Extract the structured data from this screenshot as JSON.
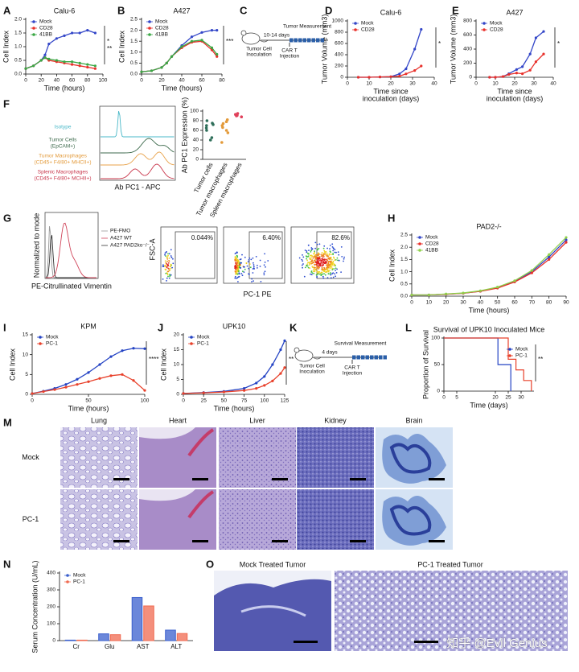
{
  "panel_labels": [
    "A",
    "B",
    "C",
    "D",
    "E",
    "F",
    "G",
    "H",
    "I",
    "J",
    "K",
    "L",
    "M",
    "N",
    "O"
  ],
  "chart_data": [
    {
      "type": "line",
      "title": "Calu-6",
      "x_label": "Time (hours)",
      "y_label": "Cell Index",
      "x": [
        0,
        10,
        20,
        25,
        30,
        40,
        50,
        60,
        70,
        80,
        90
      ],
      "xlim": [
        0,
        100
      ],
      "xticks": [
        0,
        20,
        40,
        60,
        80,
        100
      ],
      "ylim": [
        0,
        2
      ],
      "yticks": [
        {
          "value": 0,
          "label": "0.0"
        },
        0.5,
        {
          "value": 1,
          "label": "1.0"
        },
        1.5,
        {
          "value": 2,
          "label": "2.0"
        }
      ],
      "legend": "upper left",
      "annotations": [
        "*",
        "**"
      ],
      "series": [
        {
          "name": "Mock",
          "color": "#3346c8",
          "values": [
            0.2,
            0.3,
            0.5,
            0.7,
            1.1,
            1.3,
            1.4,
            1.5,
            1.5,
            1.6,
            1.5
          ]
        },
        {
          "name": "CD28",
          "color": "#e8302a",
          "values": [
            0.2,
            0.3,
            0.5,
            0.6,
            0.5,
            0.45,
            0.4,
            0.35,
            0.3,
            0.25,
            0.2
          ]
        },
        {
          "name": "41BB",
          "color": "#3aa845",
          "values": [
            0.2,
            0.3,
            0.5,
            0.6,
            0.55,
            0.5,
            0.45,
            0.45,
            0.4,
            0.35,
            0.3
          ]
        }
      ]
    },
    {
      "type": "line",
      "title": "A427",
      "x_label": "Time (hours)",
      "y_label": "Cell Index",
      "x": [
        0,
        10,
        20,
        25,
        30,
        40,
        50,
        60,
        70,
        75
      ],
      "xlim": [
        0,
        80
      ],
      "xticks": [
        0,
        20,
        40,
        60,
        80
      ],
      "ylim": [
        0,
        2.5
      ],
      "yticks": [
        {
          "value": 0,
          "label": "0.0"
        },
        0.5,
        {
          "value": 1,
          "label": "1.0"
        },
        1.5,
        {
          "value": 2,
          "label": "2.0"
        },
        2.5
      ],
      "legend": "upper left",
      "annotations": [
        "***"
      ],
      "series": [
        {
          "name": "Mock",
          "color": "#3346c8",
          "values": [
            0.1,
            0.15,
            0.3,
            0.5,
            0.8,
            1.3,
            1.7,
            1.9,
            2.0,
            2.0
          ]
        },
        {
          "name": "CD28",
          "color": "#e8302a",
          "values": [
            0.1,
            0.15,
            0.3,
            0.5,
            0.8,
            1.2,
            1.45,
            1.5,
            1.1,
            0.8
          ]
        },
        {
          "name": "41BB",
          "color": "#3aa845",
          "values": [
            0.1,
            0.15,
            0.3,
            0.5,
            0.8,
            1.25,
            1.5,
            1.55,
            1.2,
            0.9
          ]
        }
      ]
    },
    {
      "type": "line",
      "title": "Calu-6",
      "x_label": [
        "Time since",
        "inoculation (days)"
      ],
      "y_label": "Tumor Volume (mm3)",
      "x": [
        5,
        10,
        15,
        20,
        24,
        27,
        31,
        34
      ],
      "xlim": [
        0,
        40
      ],
      "xticks": [
        0,
        10,
        20,
        30,
        40
      ],
      "ylim": [
        0,
        1000
      ],
      "yticks": [
        0,
        200,
        400,
        600,
        800,
        1000
      ],
      "legend": "upper left",
      "annotations": [
        "*"
      ],
      "series": [
        {
          "name": "Mock",
          "color": "#3346c8",
          "values": [
            0,
            0,
            5,
            10,
            60,
            150,
            500,
            850
          ]
        },
        {
          "name": "CD28",
          "color": "#e8302a",
          "values": [
            0,
            0,
            5,
            10,
            20,
            60,
            120,
            200
          ]
        }
      ]
    },
    {
      "type": "line",
      "title": "A427",
      "x_label": [
        "Time since",
        "inoculation (days)"
      ],
      "y_label": "Tumor Volume (mm3)",
      "x": [
        7,
        10,
        14,
        17,
        21,
        24,
        28,
        31,
        35
      ],
      "xlim": [
        0,
        40
      ],
      "xticks": [
        0,
        10,
        20,
        30,
        40
      ],
      "ylim": [
        0,
        800
      ],
      "yticks": [
        0,
        200,
        400,
        600,
        800
      ],
      "legend": "upper left",
      "annotations": [
        "*"
      ],
      "series": [
        {
          "name": "Mock",
          "color": "#3346c8",
          "values": [
            0,
            0,
            10,
            50,
            110,
            150,
            330,
            560,
            650
          ]
        },
        {
          "name": "CD28",
          "color": "#e8302a",
          "values": [
            0,
            0,
            10,
            40,
            60,
            50,
            100,
            220,
            330
          ]
        }
      ]
    },
    {
      "type": "strip",
      "y_label": "Ab PC1 Expression (%)",
      "categories": [
        "Tumor cells",
        "Tumor macrophages",
        "Spleen macrophages"
      ],
      "colors": [
        "#2f6f5a",
        "#e39a3a",
        "#e0405a"
      ],
      "values": [
        [
          80,
          75,
          72,
          70,
          65,
          60,
          45,
          40
        ],
        [
          82,
          78,
          74,
          70,
          66,
          60,
          55,
          35
        ],
        [
          95,
          93,
          91,
          90,
          88
        ]
      ],
      "ylim": [
        0,
        100
      ],
      "yticks": [
        0,
        20,
        40,
        60,
        80,
        100
      ]
    },
    {
      "type": "line",
      "title": "PAD2-/-",
      "x_label": "Time (hours)",
      "y_label": "Cell Index",
      "x": [
        0,
        10,
        20,
        30,
        40,
        50,
        60,
        70,
        80,
        90
      ],
      "xlim": [
        0,
        90
      ],
      "xticks": [
        0,
        10,
        20,
        30,
        40,
        50,
        60,
        70,
        80,
        90
      ],
      "ylim": [
        0,
        2.5
      ],
      "yticks": [
        {
          "value": 0,
          "label": "0.0"
        },
        0.5,
        {
          "value": 1,
          "label": "1.0"
        },
        1.5,
        {
          "value": 2,
          "label": "2.0"
        },
        2.5
      ],
      "legend": "upper left",
      "series": [
        {
          "name": "Mock",
          "color": "#3346c8",
          "values": [
            0.05,
            0.05,
            0.08,
            0.12,
            0.2,
            0.35,
            0.6,
            1.0,
            1.6,
            2.3
          ]
        },
        {
          "name": "CD28",
          "color": "#e8302a",
          "values": [
            0.05,
            0.05,
            0.08,
            0.12,
            0.2,
            0.33,
            0.58,
            0.95,
            1.5,
            2.2
          ]
        },
        {
          "name": "41BB",
          "color": "#8fd04a",
          "values": [
            0.05,
            0.05,
            0.09,
            0.13,
            0.22,
            0.37,
            0.63,
            1.05,
            1.7,
            2.4
          ]
        }
      ]
    },
    {
      "type": "line",
      "title": "KPM",
      "x_label": "Time (hours)",
      "y_label": "Cell Index",
      "x": [
        0,
        10,
        20,
        30,
        40,
        50,
        60,
        70,
        80,
        90,
        100
      ],
      "xlim": [
        0,
        100
      ],
      "xticks": [
        0,
        50,
        100
      ],
      "ylim": [
        0,
        15
      ],
      "yticks": [
        0,
        5,
        10,
        15
      ],
      "legend": "upper left",
      "annotations": [
        "****"
      ],
      "series": [
        {
          "name": "Mock",
          "color": "#2443c4",
          "values": [
            0.2,
            0.8,
            1.5,
            2.5,
            3.8,
            5.5,
            7.5,
            9.5,
            11,
            11.6,
            11.5
          ]
        },
        {
          "name": "PC-1",
          "color": "#e8402a",
          "values": [
            0.2,
            0.7,
            1.2,
            1.8,
            2.5,
            3.2,
            4,
            4.7,
            5,
            3.5,
            1
          ]
        }
      ]
    },
    {
      "type": "line",
      "title": "UPK10",
      "x_label": "Time (hours)",
      "y_label": "Cell Index",
      "x": [
        0,
        25,
        50,
        75,
        90,
        100,
        110,
        120,
        125
      ],
      "xlim": [
        0,
        125
      ],
      "xticks": [
        0,
        25,
        50,
        75,
        100,
        125
      ],
      "ylim": [
        0,
        20
      ],
      "yticks": [
        0,
        5,
        10,
        15,
        20
      ],
      "legend": "upper left",
      "annotations": [
        "**"
      ],
      "series": [
        {
          "name": "Mock",
          "color": "#2443c4",
          "values": [
            0.3,
            0.6,
            1.0,
            2.0,
            3.8,
            6,
            10,
            15,
            18
          ]
        },
        {
          "name": "PC-1",
          "color": "#e8402a",
          "values": [
            0.3,
            0.5,
            0.8,
            1.3,
            2,
            3,
            4.5,
            7,
            9
          ]
        }
      ]
    },
    {
      "type": "step",
      "title": "Survival of UPK10 Inoculated Mice",
      "x_label": "Time (days)",
      "y_label": "Proportion of Survival",
      "xlim": [
        0,
        35
      ],
      "xticks": [
        0,
        5,
        20,
        25,
        30
      ],
      "ylim": [
        0,
        100
      ],
      "yticks": [
        0,
        50,
        100
      ],
      "legend": "upper right",
      "annotations": [
        "**"
      ],
      "series": [
        {
          "name": "Mock",
          "color": "#2443c4",
          "x": [
            0,
            21,
            26
          ],
          "values": [
            100,
            50,
            0
          ]
        },
        {
          "name": "PC-1",
          "color": "#e8402a",
          "x": [
            0,
            25,
            28,
            31,
            34
          ],
          "values": [
            100,
            60,
            40,
            20,
            0
          ]
        }
      ]
    },
    {
      "type": "bar",
      "y_label": "Serum Concentration (U/mL)",
      "categories": [
        "Cr",
        "Glu",
        "AST",
        "ALT"
      ],
      "ylim": [
        0,
        400
      ],
      "yticks": [
        0,
        100,
        200,
        300,
        400
      ],
      "legend": "upper left",
      "series": [
        {
          "name": "Mock",
          "color": "#3a5fcd",
          "values": [
            3,
            40,
            255,
            62
          ]
        },
        {
          "name": "PC-1",
          "color": "#f06a50",
          "values": [
            3,
            35,
            205,
            42
          ]
        }
      ]
    }
  ],
  "diagram_C": {
    "top": "Tumor Measurement",
    "interval": "10-14 days",
    "start": [
      "Tumor Cell",
      "Inoculation"
    ],
    "injection": [
      "CAR T",
      "Injection"
    ]
  },
  "diagram_K": {
    "top": "Survival Measurement",
    "interval": "4 days",
    "start": [
      "Tumor Cell",
      "Inoculation"
    ],
    "injection": [
      "CAR T",
      "Injection"
    ]
  },
  "histogram_F": {
    "labels": [
      [
        "Isotype"
      ],
      [
        "Tumor Cells",
        "(EpCAM+)"
      ],
      [
        "Tumor Macrophages",
        "(CD45+ F4/80+ MHCII+)"
      ],
      [
        "Splenic Macrophages",
        "(CD45+ F4/80+ MCHII+)"
      ]
    ],
    "x_label": "Ab PC1 - APC"
  },
  "histogram_G": {
    "legend": [
      "PE-FMO",
      "A427 WT",
      "A427 PAD2ko⁻/⁻"
    ],
    "x_label": "PE-Citrullinated Vimentin",
    "y_label": "Normalized to mode"
  },
  "flow_G": {
    "y_label": "FSC-A",
    "x_label": "PC-1 PE",
    "gates": [
      "0.044%",
      "6.40%",
      "82.6%"
    ]
  },
  "histology_M": {
    "columns": [
      "Lung",
      "Heart",
      "Liver",
      "Kidney",
      "Brain"
    ],
    "rows": [
      "Mock",
      "PC-1"
    ]
  },
  "histology_O": {
    "titles": [
      "Mock Treated Tumor",
      "PC-1 Treated Tumor"
    ]
  },
  "watermark": "知乎 @Evil Genius"
}
